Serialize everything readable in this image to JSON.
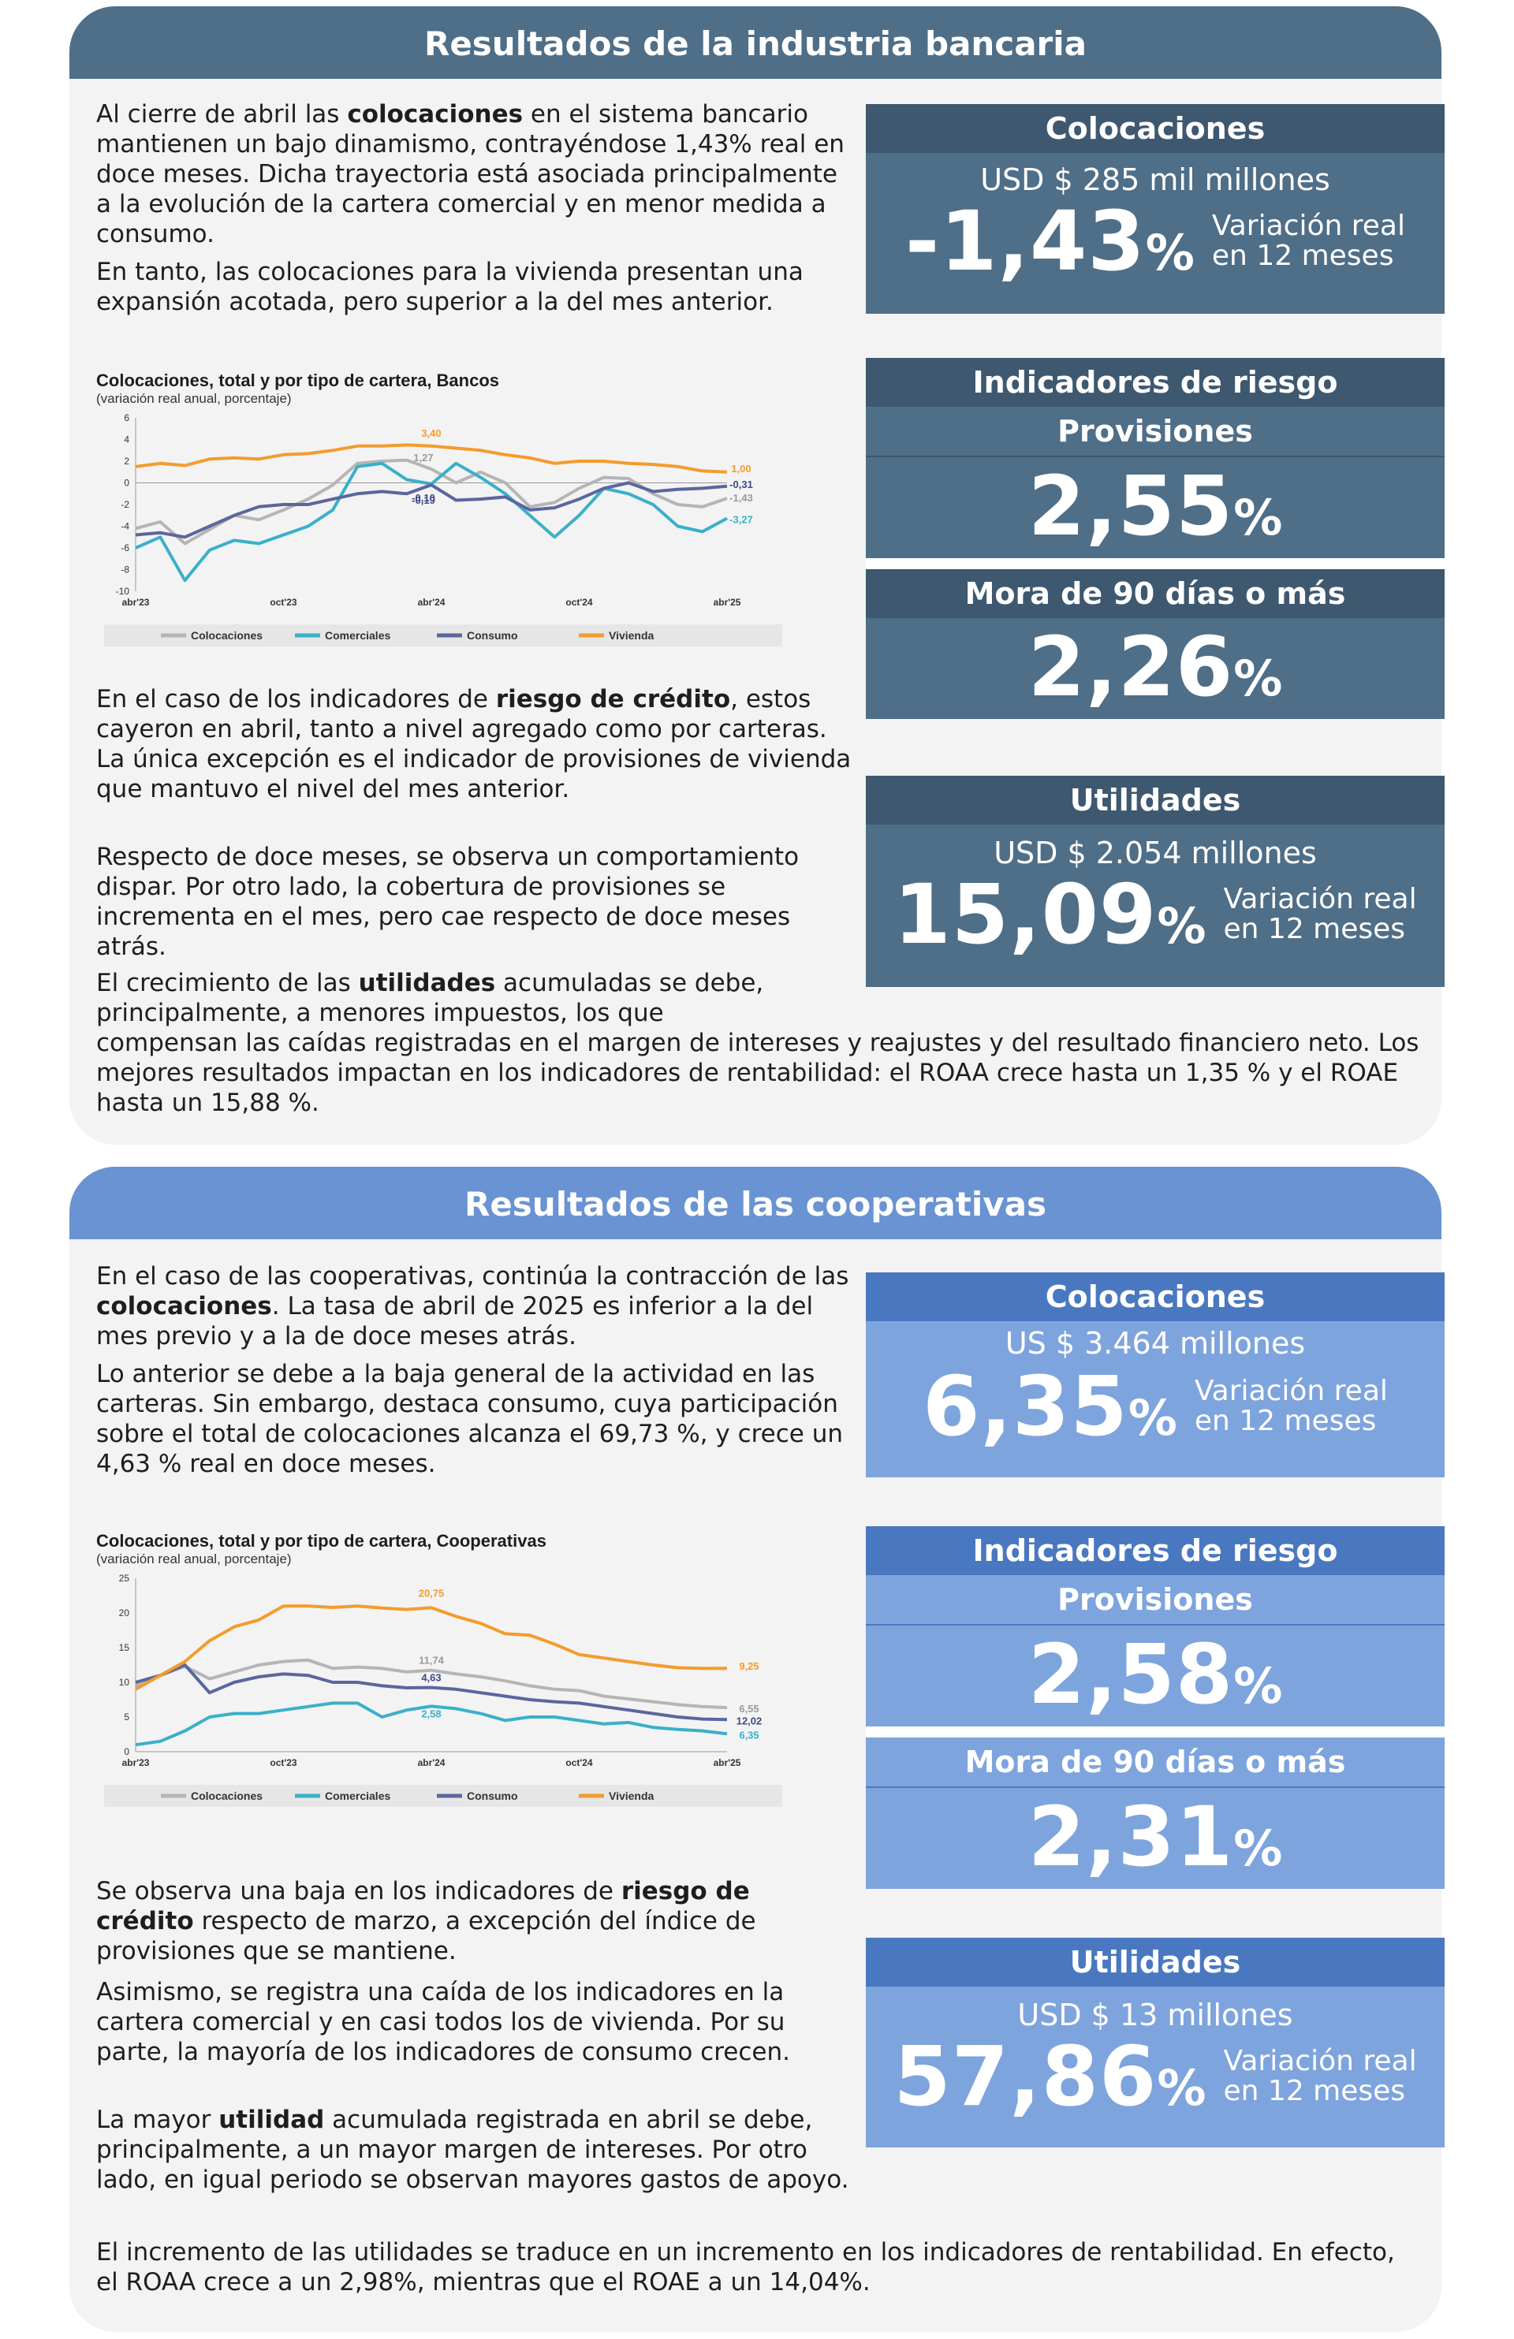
{
  "bank": {
    "title": "Resultados de la industria bancaria",
    "p1": [
      "Al cierre de abril las ",
      "colocaciones",
      " en el sistema bancario mantienen un bajo dinamismo, contrayéndose 1,43% real en doce meses. Dicha trayectoria está asociada principalmente a la evolución de la cartera comercial y en menor medida a consumo."
    ],
    "p2": "En tanto, las colocaciones para la vivienda presentan una expansión acotada, pero superior a la del mes anterior.",
    "p3": [
      "En el caso de los indicadores de ",
      "riesgo de crédito",
      ", estos cayeron en abril, tanto a nivel agregado como por carteras. La única excepción es el indicador de provisiones de vivienda que mantuvo el nivel del mes anterior."
    ],
    "p4": "Respecto de doce meses, se observa un comportamiento dispar. Por otro lado, la cobertura de provisiones se incrementa en el mes, pero cae respecto de doce meses atrás.",
    "p5a": [
      "El crecimiento de las ",
      "utilidades",
      " acumuladas se debe, principalmente, a menores impuestos, los que"
    ],
    "p5b": "compensan las caídas registradas en el margen de intereses y reajustes y del resultado financiero neto. Los mejores resultados impactan en los indicadores de rentabilidad: el ROAA crece hasta un 1,35 % y el ROAE hasta un 15,88 %.",
    "cards": {
      "colocaciones": {
        "title": "Colocaciones",
        "amount": "USD $ 285 mil millones",
        "value": "-1,43",
        "pct": "%",
        "note1": "Variación real",
        "note2": "en 12 meses"
      },
      "riesgo_title": "Indicadores de riesgo",
      "provisiones": {
        "title": "Provisiones",
        "value": "2,55",
        "pct": "%"
      },
      "mora": {
        "title": "Mora de 90 días o más",
        "value": "2,26",
        "pct": "%"
      },
      "utilidades": {
        "title": "Utilidades",
        "amount": "USD $ 2.054 millones",
        "value": "15,09",
        "pct": "%",
        "note1": "Variación real",
        "note2": "en 12 meses"
      }
    }
  },
  "coop": {
    "title": "Resultados de las cooperativas",
    "p1": [
      "En el caso de las cooperativas, continúa la contracción de las ",
      "colocaciones",
      ". La tasa de abril de 2025 es inferior a la del mes previo y a la de doce meses atrás."
    ],
    "p2": "Lo anterior se debe a la baja general de la actividad en las carteras. Sin embargo, destaca consumo, cuya participación sobre el total de colocaciones alcanza el 69,73 %, y crece un 4,63 % real en doce meses.",
    "p3": [
      "Se observa una baja en los indicadores de ",
      "riesgo de crédito",
      " respecto de marzo, a excepción del índice de provisiones que se mantiene."
    ],
    "p4": "Asimismo, se registra una caída de los indicadores en la cartera comercial y en casi todos los de vivienda. Por su parte, la mayoría de los indicadores de consumo crecen.",
    "p5": [
      "La mayor ",
      "utilidad",
      " acumulada registrada en abril se debe, principalmente, a un mayor margen de intereses. Por otro lado, en igual periodo se observan mayores gastos de apoyo."
    ],
    "p6": "El incremento de las utilidades se traduce en un incremento en los indicadores de rentabilidad. En efecto, el ROAA crece a un 2,98%, mientras que el ROAE a un 14,04%.",
    "cards": {
      "colocaciones": {
        "title": "Colocaciones",
        "amount": "US $ 3.464 millones",
        "value": "6,35",
        "pct": "%",
        "note1": "Variación real",
        "note2": "en 12 meses"
      },
      "riesgo_title": "Indicadores de riesgo",
      "provisiones": {
        "title": "Provisiones",
        "value": "2,58",
        "pct": "%"
      },
      "mora": {
        "title": "Mora de 90 días o más",
        "value": "2,31",
        "pct": "%"
      },
      "utilidades": {
        "title": "Utilidades",
        "amount": "USD $ 13 millones",
        "value": "57,86",
        "pct": "%",
        "note1": "Variación real",
        "note2": "en 12 meses"
      }
    }
  },
  "chart_data": [
    {
      "type": "line",
      "title": "Colocaciones, total y por tipo de cartera, Bancos",
      "subtitle": "(variación real anual, porcentaje)",
      "ylim": [
        -10,
        6
      ],
      "yticks": [
        6,
        4,
        2,
        0,
        -2,
        -4,
        -6,
        -8,
        -10
      ],
      "xticks": [
        "abr'23",
        "oct'23",
        "abr'24",
        "oct'24",
        "abr'25"
      ],
      "x": [
        "abr'23",
        "may'23",
        "jun'23",
        "jul'23",
        "ago'23",
        "sep'23",
        "oct'23",
        "nov'23",
        "dic'23",
        "ene'24",
        "feb'24",
        "mar'24",
        "abr'24",
        "may'24",
        "jun'24",
        "jul'24",
        "ago'24",
        "sep'24",
        "oct'24",
        "nov'24",
        "dic'24",
        "ene'25",
        "feb'25",
        "mar'25",
        "abr'25"
      ],
      "series": [
        {
          "name": "Colocaciones",
          "color": "#b5b5b5",
          "values": [
            -4.2,
            -3.6,
            -5.6,
            -4.3,
            -3.0,
            -3.4,
            -2.5,
            -1.5,
            -0.2,
            1.8,
            2.0,
            2.1,
            1.27,
            0.0,
            1.0,
            0.0,
            -2.2,
            -1.8,
            -0.5,
            0.5,
            0.4,
            -1.0,
            -2.0,
            -2.2,
            -1.43
          ]
        },
        {
          "name": "Comerciales",
          "color": "#3ab0c9",
          "values": [
            -6.0,
            -5.0,
            -9.0,
            -6.2,
            -5.3,
            -5.6,
            -4.8,
            -4.0,
            -2.5,
            1.5,
            1.8,
            0.3,
            -0.1,
            1.8,
            0.5,
            -1.0,
            -3.0,
            -5.0,
            -3.0,
            -0.5,
            -1.0,
            -2.0,
            -4.0,
            -4.5,
            -3.27
          ]
        },
        {
          "name": "Consumo",
          "color": "#5a669f",
          "values": [
            -4.8,
            -4.6,
            -5.0,
            -4.0,
            -3.0,
            -2.2,
            -2.0,
            -2.0,
            -1.5,
            -1.0,
            -0.8,
            -1.0,
            -0.19,
            -1.6,
            -1.5,
            -1.3,
            -2.5,
            -2.3,
            -1.5,
            -0.5,
            0.0,
            -0.8,
            -0.6,
            -0.5,
            -0.31
          ]
        },
        {
          "name": "Vivienda",
          "color": "#f39c2d",
          "values": [
            1.5,
            1.8,
            1.6,
            2.2,
            2.3,
            2.2,
            2.6,
            2.7,
            3.0,
            3.4,
            3.4,
            3.5,
            3.4,
            3.2,
            3.0,
            2.6,
            2.3,
            1.8,
            2.0,
            2.0,
            1.8,
            1.7,
            1.5,
            1.1,
            1.0
          ]
        }
      ],
      "annotations": [
        "3,40",
        "1,27",
        "1,00",
        "-0,31",
        "-1,43",
        "-3,27",
        "-0,10",
        "-0,19"
      ],
      "legend": "bottom"
    },
    {
      "type": "line",
      "title": "Colocaciones, total y por tipo de cartera, Cooperativas",
      "subtitle": "(variación real anual, porcentaje)",
      "ylim": [
        0,
        25
      ],
      "yticks": [
        25,
        20,
        15,
        10,
        5,
        0
      ],
      "xticks": [
        "abr'23",
        "oct'23",
        "abr'24",
        "oct'24",
        "abr'25"
      ],
      "x": [
        "abr'23",
        "may'23",
        "jun'23",
        "jul'23",
        "ago'23",
        "sep'23",
        "oct'23",
        "nov'23",
        "dic'23",
        "ene'24",
        "feb'24",
        "mar'24",
        "abr'24",
        "may'24",
        "jun'24",
        "jul'24",
        "ago'24",
        "sep'24",
        "oct'24",
        "nov'24",
        "dic'24",
        "ene'25",
        "feb'25",
        "mar'25",
        "abr'25"
      ],
      "series": [
        {
          "name": "Colocaciones",
          "color": "#b5b5b5",
          "values": [
            9.5,
            11.0,
            12.3,
            10.5,
            11.5,
            12.5,
            13.0,
            13.2,
            12.0,
            12.2,
            12.0,
            11.5,
            11.74,
            11.2,
            10.8,
            10.2,
            9.5,
            9.0,
            8.8,
            8.0,
            7.6,
            7.2,
            6.8,
            6.5,
            6.35
          ]
        },
        {
          "name": "Comerciales",
          "color": "#3ab0c9",
          "values": [
            1.0,
            1.5,
            3.0,
            5.0,
            5.5,
            5.5,
            6.0,
            6.5,
            7.0,
            7.0,
            5.0,
            6.0,
            6.55,
            6.2,
            5.5,
            4.5,
            5.0,
            5.0,
            4.5,
            4.0,
            4.2,
            3.5,
            3.2,
            3.0,
            2.58
          ]
        },
        {
          "name": "Consumo",
          "color": "#5a669f",
          "values": [
            10.0,
            11.0,
            12.5,
            8.5,
            10.0,
            10.8,
            11.2,
            11.0,
            10.0,
            10.0,
            9.5,
            9.2,
            9.25,
            9.0,
            8.5,
            8.0,
            7.5,
            7.2,
            7.0,
            6.5,
            6.0,
            5.5,
            5.0,
            4.7,
            4.63
          ]
        },
        {
          "name": "Vivienda",
          "color": "#f39c2d",
          "values": [
            9.0,
            11.0,
            13.0,
            16.0,
            18.0,
            19.0,
            21.0,
            21.0,
            20.8,
            21.0,
            20.7,
            20.5,
            20.75,
            19.5,
            18.5,
            17.0,
            16.8,
            15.5,
            14.0,
            13.5,
            13.0,
            12.5,
            12.1,
            12.0,
            12.02
          ]
        }
      ],
      "annotations": [
        "20,75",
        "11,74",
        "9,25",
        "6,55",
        "12,02",
        "6,35",
        "4,63",
        "2,58"
      ],
      "legend": "bottom"
    }
  ]
}
